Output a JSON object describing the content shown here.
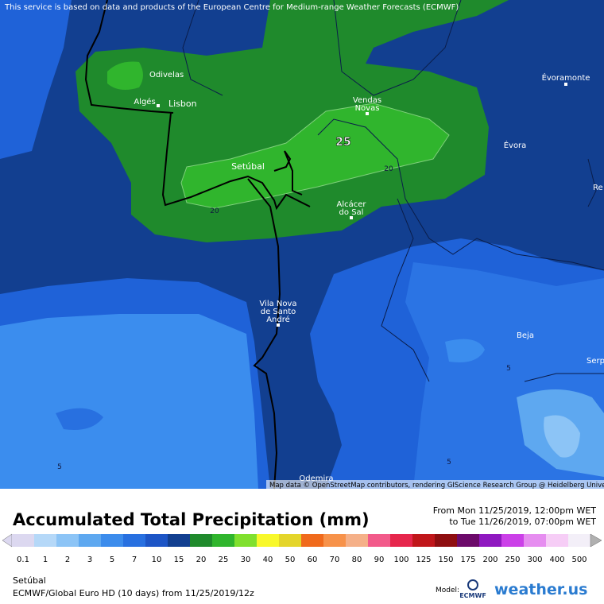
{
  "notice": "This service is based on data and products of the European Centre for Medium-range Weather Forecasts (ECMWF)",
  "attribution": "Map data © OpenStreetMap contributors, rendering GIScience Research Group @ Heidelberg University",
  "places": [
    {
      "lines": [
        "Odivelas"
      ]
    },
    {
      "lines": [
        "Algés"
      ]
    },
    {
      "lines": [
        "Lisbon"
      ]
    },
    {
      "lines": [
        "Vendas",
        "Novas"
      ]
    },
    {
      "lines": [
        "Évoramonte"
      ]
    },
    {
      "lines": [
        "Évora"
      ]
    },
    {
      "lines": [
        "Setúbal"
      ]
    },
    {
      "lines": [
        "Alcácer",
        "do Sal"
      ]
    },
    {
      "lines": [
        "Vila Nova",
        "de Santo",
        "André"
      ]
    },
    {
      "lines": [
        "Beja"
      ]
    },
    {
      "lines": [
        "Odemira"
      ]
    },
    {
      "lines": [
        "Re"
      ]
    },
    {
      "lines": [
        "Serp"
      ]
    }
  ],
  "contour_labels": [
    "25",
    "20",
    "20",
    "5",
    "5",
    "5"
  ],
  "legend": {
    "title": "Accumulated Total Precipitation (mm)",
    "from": "From Mon 11/25/2019, 12:00pm WET",
    "to": "to Tue 11/26/2019, 07:00pm WET",
    "items": [
      {
        "label": "0.1",
        "color": "#dcd8f0"
      },
      {
        "label": "1",
        "color": "#b5d8f8"
      },
      {
        "label": "2",
        "color": "#8cc4f6"
      },
      {
        "label": "3",
        "color": "#5ea8f0"
      },
      {
        "label": "5",
        "color": "#3c8cec"
      },
      {
        "label": "7",
        "color": "#2870e0"
      },
      {
        "label": "10",
        "color": "#1d55c6"
      },
      {
        "label": "15",
        "color": "#123f90"
      },
      {
        "label": "20",
        "color": "#1f8a2c"
      },
      {
        "label": "25",
        "color": "#30b52d"
      },
      {
        "label": "30",
        "color": "#80e02e"
      },
      {
        "label": "40",
        "color": "#f8f82b"
      },
      {
        "label": "50",
        "color": "#e4d52a"
      },
      {
        "label": "60",
        "color": "#f06a1c"
      },
      {
        "label": "70",
        "color": "#f7924a"
      },
      {
        "label": "80",
        "color": "#f5b088"
      },
      {
        "label": "90",
        "color": "#f25a8a"
      },
      {
        "label": "100",
        "color": "#e6264c"
      },
      {
        "label": "125",
        "color": "#c0161a"
      },
      {
        "label": "150",
        "color": "#8e0e10"
      },
      {
        "label": "175",
        "color": "#6c0a6a"
      },
      {
        "label": "200",
        "color": "#8f18c0"
      },
      {
        "label": "250",
        "color": "#cb40e8"
      },
      {
        "label": "300",
        "color": "#e68df0"
      },
      {
        "label": "400",
        "color": "#f6cdf6"
      },
      {
        "label": "500",
        "color": "#f3eff8"
      }
    ]
  },
  "footer": {
    "location": "Setúbal",
    "model_line": "ECMWF/Global Euro HD (10 days)  from  11/25/2019/12z",
    "model_label": "Model:",
    "model_logo": "ECMWF",
    "brand": "weather.us"
  }
}
